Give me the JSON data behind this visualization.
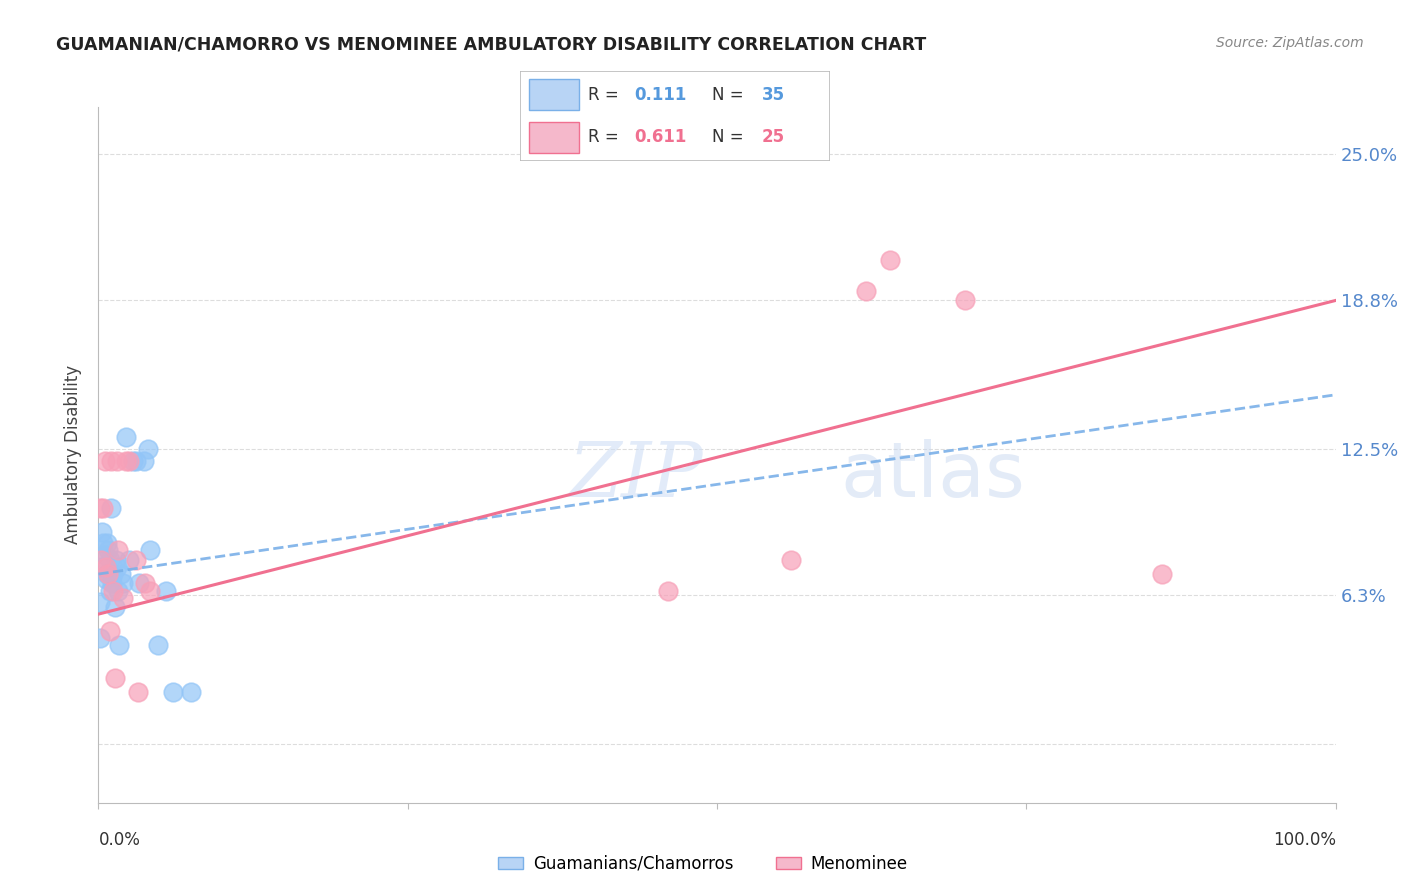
{
  "title": "GUAMANIAN/CHAMORRO VS MENOMINEE AMBULATORY DISABILITY CORRELATION CHART",
  "source": "Source: ZipAtlas.com",
  "ylabel": "Ambulatory Disability",
  "yticks": [
    0.0,
    0.063,
    0.125,
    0.188,
    0.25
  ],
  "ytick_labels": [
    "",
    "6.3%",
    "12.5%",
    "18.8%",
    "25.0%"
  ],
  "xlim": [
    0.0,
    1.0
  ],
  "ylim": [
    -0.025,
    0.27
  ],
  "guamanian_color": "#92c5f7",
  "menominee_color": "#f7a0b8",
  "trendline_blue_color": "#7ab0e8",
  "trendline_pink_color": "#f07090",
  "watermark_zip": "ZIP",
  "watermark_atlas": "atlas",
  "background_color": "#ffffff",
  "grid_color": "#dddddd",
  "legend_box_color": "#dddddd",
  "legend_blue_fill": "#b8d4f5",
  "legend_pink_fill": "#f5b8cb",
  "guamanian_points_x": [
    0.001,
    0.001,
    0.001,
    0.003,
    0.004,
    0.005,
    0.006,
    0.007,
    0.007,
    0.008,
    0.009,
    0.009,
    0.01,
    0.01,
    0.011,
    0.012,
    0.013,
    0.014,
    0.015,
    0.016,
    0.017,
    0.018,
    0.02,
    0.022,
    0.025,
    0.028,
    0.03,
    0.033,
    0.037,
    0.04,
    0.042,
    0.048,
    0.055,
    0.06,
    0.075
  ],
  "guamanian_points_y": [
    0.075,
    0.06,
    0.045,
    0.09,
    0.085,
    0.08,
    0.07,
    0.085,
    0.072,
    0.082,
    0.078,
    0.065,
    0.1,
    0.072,
    0.068,
    0.072,
    0.058,
    0.078,
    0.075,
    0.065,
    0.042,
    0.072,
    0.068,
    0.13,
    0.078,
    0.12,
    0.12,
    0.068,
    0.12,
    0.125,
    0.082,
    0.042,
    0.065,
    0.022,
    0.022
  ],
  "menominee_points_x": [
    0.001,
    0.002,
    0.004,
    0.005,
    0.006,
    0.008,
    0.009,
    0.01,
    0.012,
    0.013,
    0.015,
    0.016,
    0.02,
    0.022,
    0.025,
    0.03,
    0.032,
    0.038,
    0.042,
    0.46,
    0.56,
    0.62,
    0.64,
    0.7,
    0.86
  ],
  "menominee_points_y": [
    0.1,
    0.078,
    0.1,
    0.12,
    0.075,
    0.072,
    0.048,
    0.12,
    0.065,
    0.028,
    0.12,
    0.082,
    0.062,
    0.12,
    0.12,
    0.078,
    0.022,
    0.068,
    0.065,
    0.065,
    0.078,
    0.192,
    0.205,
    0.188,
    0.072
  ],
  "trendline_blue_x0": 0.0,
  "trendline_blue_y0": 0.072,
  "trendline_blue_x1": 1.0,
  "trendline_blue_y1": 0.148,
  "trendline_pink_x0": 0.0,
  "trendline_pink_y0": 0.055,
  "trendline_pink_x1": 1.0,
  "trendline_pink_y1": 0.188
}
